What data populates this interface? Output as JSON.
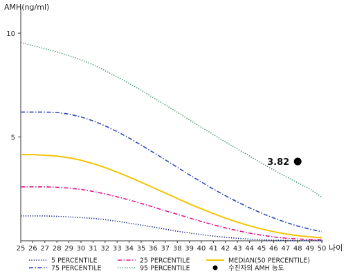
{
  "chart_data": {
    "type": "line",
    "ylabel": "AMH(ng/ml)",
    "xlabel": "나이",
    "x": [
      25,
      26,
      27,
      28,
      29,
      30,
      31,
      32,
      33,
      34,
      35,
      36,
      37,
      38,
      39,
      40,
      41,
      42,
      43,
      44,
      45,
      46,
      47,
      48,
      49,
      50
    ],
    "xlim": [
      25,
      50
    ],
    "ylim": [
      0,
      11
    ],
    "yticks": [
      5,
      10
    ],
    "grid": false,
    "legend_position": "bottom",
    "series": [
      {
        "name": "5 PERCENTILE",
        "color": "#0a1a70",
        "style": "dotted",
        "values": [
          1.2,
          1.2,
          1.2,
          1.18,
          1.15,
          1.12,
          1.08,
          1.02,
          0.94,
          0.85,
          0.76,
          0.66,
          0.56,
          0.46,
          0.38,
          0.3,
          0.23,
          0.17,
          0.12,
          0.08,
          0.05,
          0.03,
          0.02,
          0.01,
          0.01,
          0.01
        ]
      },
      {
        "name": "25 PERCENTILE",
        "color": "#e0148c",
        "style": "dashdot",
        "values": [
          2.6,
          2.6,
          2.6,
          2.58,
          2.54,
          2.48,
          2.38,
          2.26,
          2.12,
          1.97,
          1.8,
          1.63,
          1.45,
          1.28,
          1.1,
          0.93,
          0.77,
          0.62,
          0.49,
          0.37,
          0.27,
          0.19,
          0.13,
          0.09,
          0.06,
          0.05
        ]
      },
      {
        "name": "MEDIAN(50 PERCENTILE)",
        "color": "#f4c400",
        "style": "solid",
        "values": [
          4.15,
          4.15,
          4.12,
          4.08,
          4.0,
          3.88,
          3.72,
          3.53,
          3.31,
          3.07,
          2.82,
          2.56,
          2.3,
          2.04,
          1.78,
          1.54,
          1.31,
          1.09,
          0.9,
          0.72,
          0.57,
          0.44,
          0.33,
          0.25,
          0.19,
          0.15
        ]
      },
      {
        "name": "75 PERCENTILE",
        "color": "#2b47b8",
        "style": "dashdot",
        "values": [
          6.2,
          6.2,
          6.2,
          6.18,
          6.1,
          5.97,
          5.78,
          5.54,
          5.26,
          4.95,
          4.61,
          4.26,
          3.9,
          3.54,
          3.18,
          2.83,
          2.49,
          2.17,
          1.87,
          1.59,
          1.33,
          1.1,
          0.89,
          0.71,
          0.56,
          0.44
        ]
      },
      {
        "name": "95 PERCENTILE",
        "color": "#2e8b57",
        "style": "dotted",
        "values": [
          9.55,
          9.4,
          9.25,
          9.1,
          8.92,
          8.72,
          8.48,
          8.2,
          7.9,
          7.58,
          7.25,
          6.9,
          6.55,
          6.19,
          5.83,
          5.47,
          5.12,
          4.76,
          4.42,
          4.08,
          3.74,
          3.42,
          3.1,
          2.8,
          2.5,
          2.1
        ]
      }
    ],
    "points": [
      {
        "name": "수진자의 AMH 농도",
        "x": 48,
        "y": 3.82,
        "label": "3.82",
        "color": "#000000"
      }
    ]
  }
}
